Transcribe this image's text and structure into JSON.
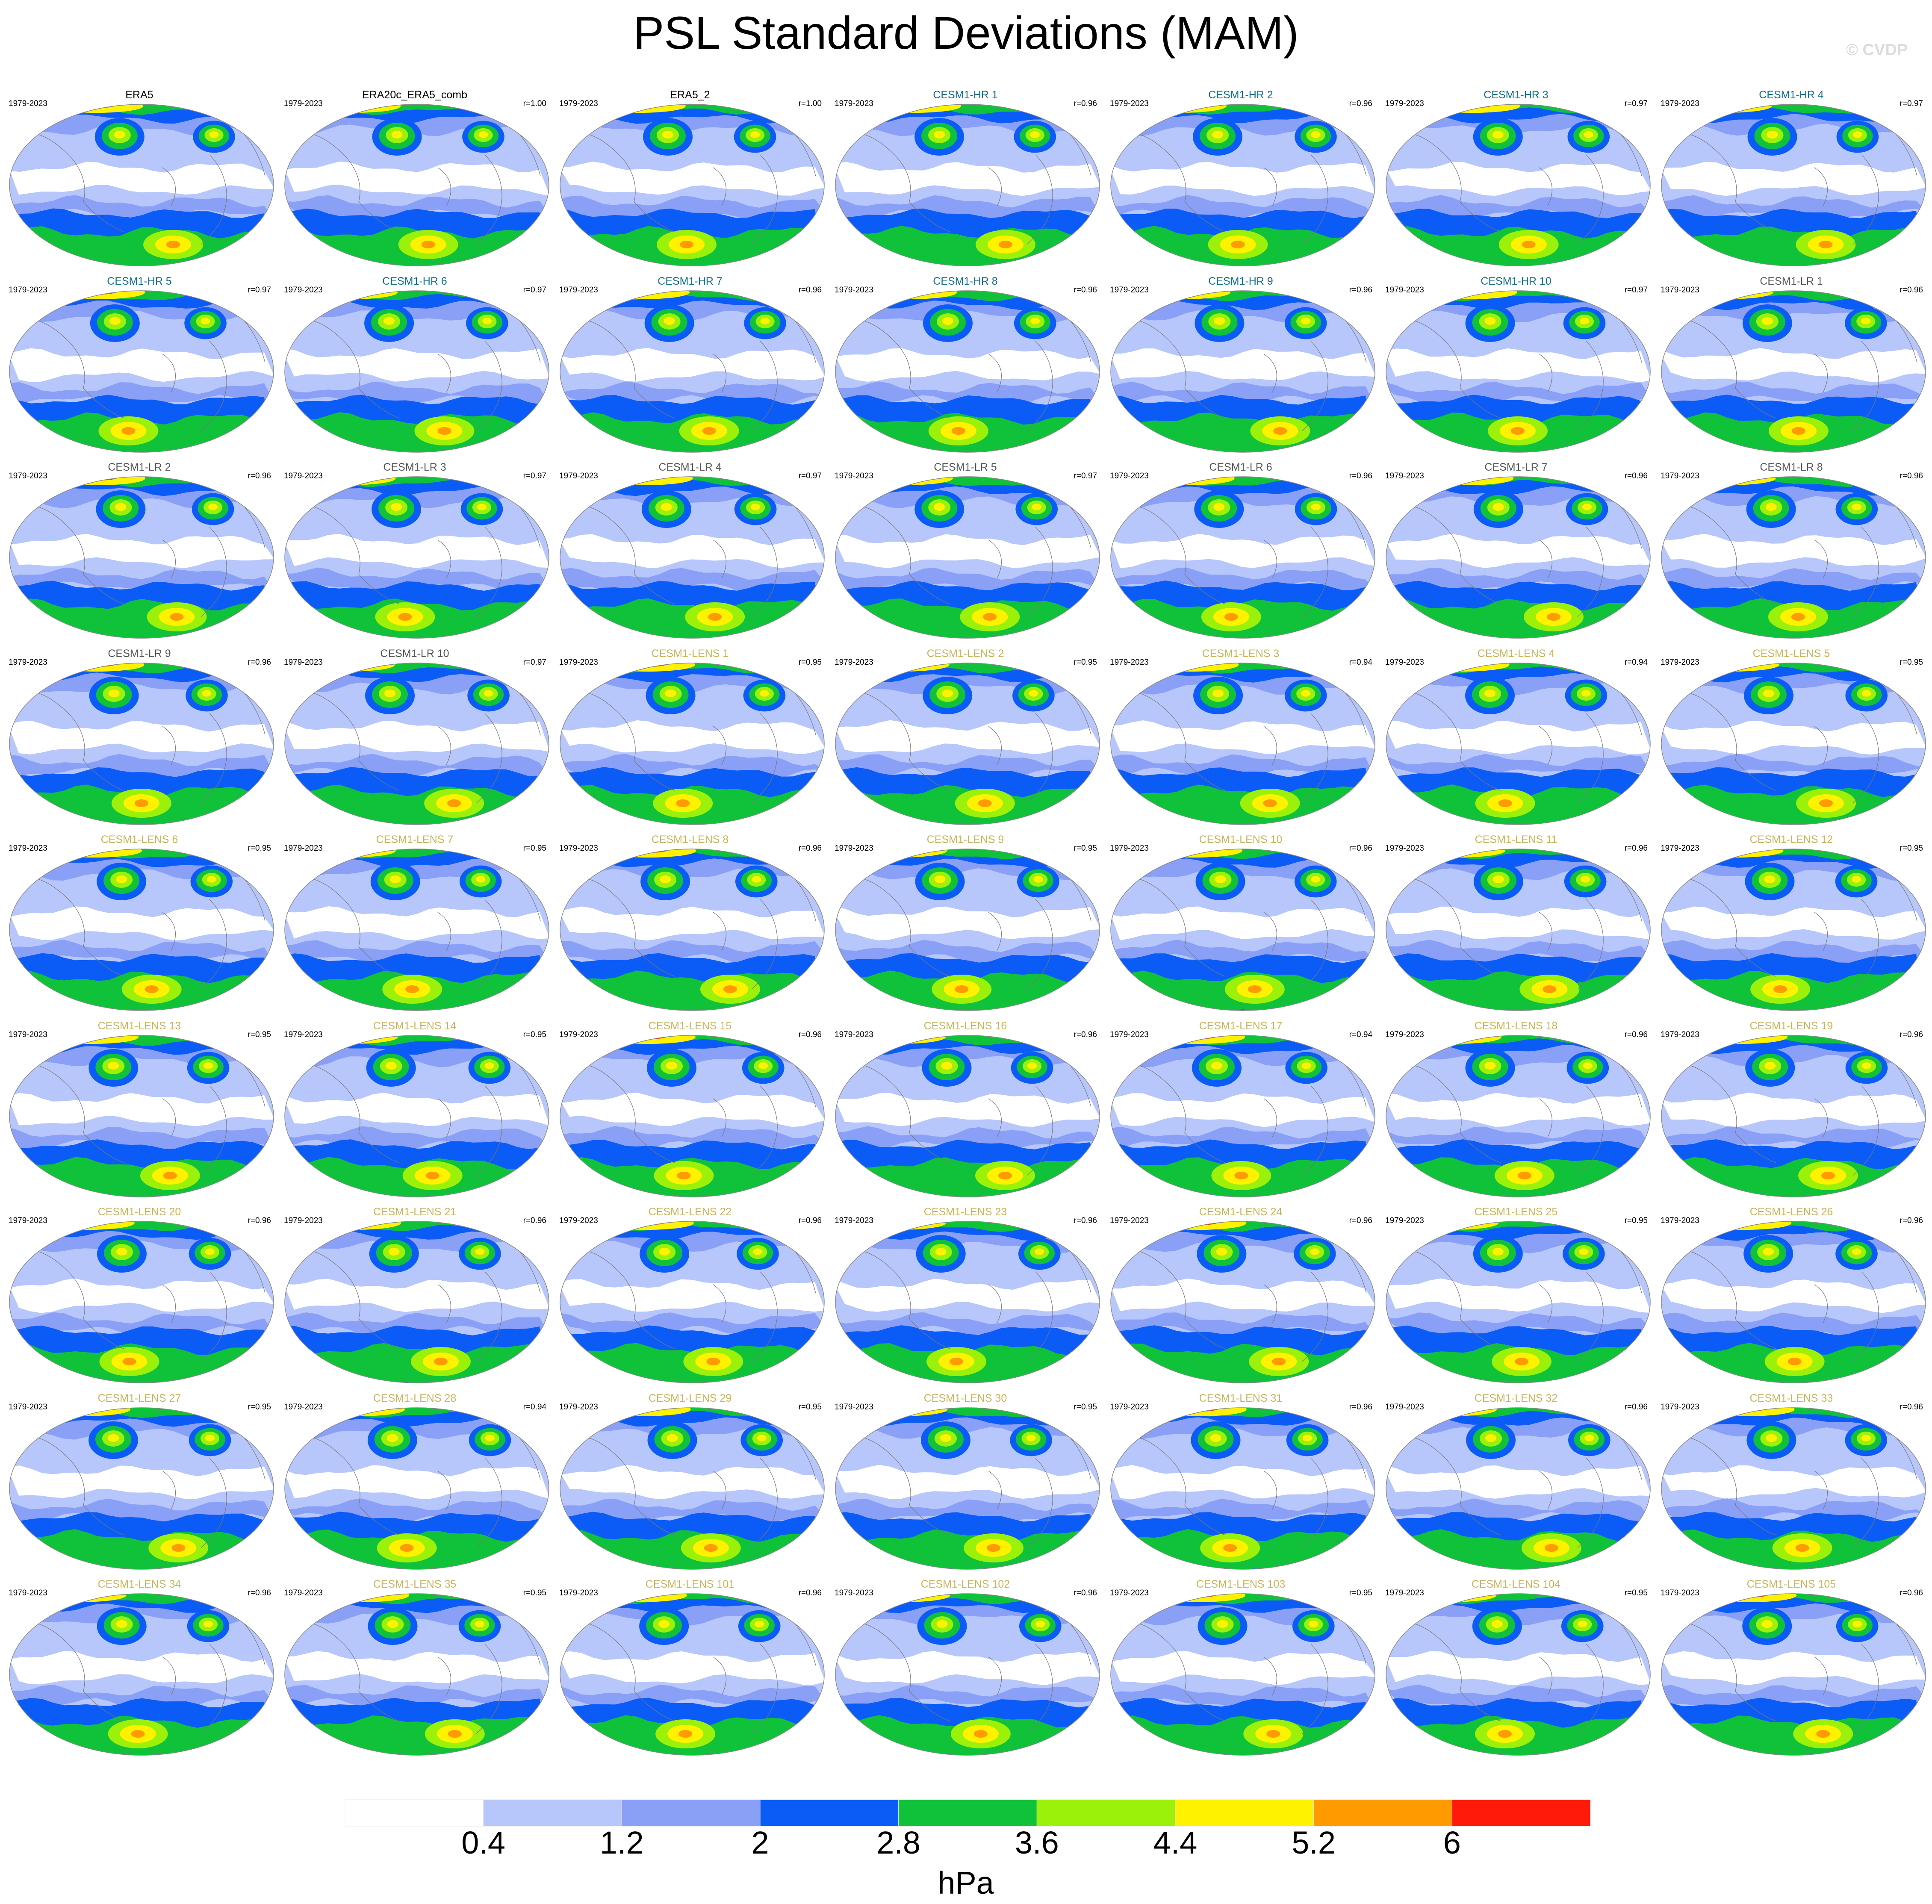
{
  "title": "PSL Standard Deviations (MAM)",
  "watermark": "© CVDP",
  "chart_data": {
    "type": "heatmap",
    "title": "PSL Standard Deviations (MAM)",
    "colorbar": {
      "units": "hPa",
      "tick_labels": [
        "0.4",
        "1.2",
        "2",
        "2.8",
        "3.6",
        "4.4",
        "5.2",
        "6"
      ],
      "colors": [
        "#ffffff",
        "#b7c6fb",
        "#8aa0f7",
        "#0b5cf7",
        "#10c23a",
        "#9cf10a",
        "#fff200",
        "#ff9a00",
        "#ff1a0a"
      ]
    },
    "panels": [
      {
        "name": "ERA5",
        "period": "1979-2023",
        "r": "",
        "group": "obs"
      },
      {
        "name": "ERA20c_ERA5_comb",
        "period": "1979-2023",
        "r": "r=1.00",
        "group": "obs"
      },
      {
        "name": "ERA5_2",
        "period": "1979-2023",
        "r": "r=1.00",
        "group": "obs"
      },
      {
        "name": "CESM1-HR 1",
        "period": "1979-2023",
        "r": "r=0.96",
        "group": "hr"
      },
      {
        "name": "CESM1-HR 2",
        "period": "1979-2023",
        "r": "r=0.96",
        "group": "hr"
      },
      {
        "name": "CESM1-HR 3",
        "period": "1979-2023",
        "r": "r=0.97",
        "group": "hr"
      },
      {
        "name": "CESM1-HR 4",
        "period": "1979-2023",
        "r": "r=0.97",
        "group": "hr"
      },
      {
        "name": "CESM1-HR 5",
        "period": "1979-2023",
        "r": "r=0.97",
        "group": "hr"
      },
      {
        "name": "CESM1-HR 6",
        "period": "1979-2023",
        "r": "r=0.97",
        "group": "hr"
      },
      {
        "name": "CESM1-HR 7",
        "period": "1979-2023",
        "r": "r=0.96",
        "group": "hr"
      },
      {
        "name": "CESM1-HR 8",
        "period": "1979-2023",
        "r": "r=0.96",
        "group": "hr"
      },
      {
        "name": "CESM1-HR 9",
        "period": "1979-2023",
        "r": "r=0.96",
        "group": "hr"
      },
      {
        "name": "CESM1-HR 10",
        "period": "1979-2023",
        "r": "r=0.97",
        "group": "hr"
      },
      {
        "name": "CESM1-LR 1",
        "period": "1979-2023",
        "r": "r=0.96",
        "group": "lr"
      },
      {
        "name": "CESM1-LR 2",
        "period": "1979-2023",
        "r": "r=0.96",
        "group": "lr"
      },
      {
        "name": "CESM1-LR 3",
        "period": "1979-2023",
        "r": "r=0.97",
        "group": "lr"
      },
      {
        "name": "CESM1-LR 4",
        "period": "1979-2023",
        "r": "r=0.97",
        "group": "lr"
      },
      {
        "name": "CESM1-LR 5",
        "period": "1979-2023",
        "r": "r=0.97",
        "group": "lr"
      },
      {
        "name": "CESM1-LR 6",
        "period": "1979-2023",
        "r": "r=0.96",
        "group": "lr"
      },
      {
        "name": "CESM1-LR 7",
        "period": "1979-2023",
        "r": "r=0.96",
        "group": "lr"
      },
      {
        "name": "CESM1-LR 8",
        "period": "1979-2023",
        "r": "r=0.96",
        "group": "lr"
      },
      {
        "name": "CESM1-LR 9",
        "period": "1979-2023",
        "r": "r=0.96",
        "group": "lr"
      },
      {
        "name": "CESM1-LR 10",
        "period": "1979-2023",
        "r": "r=0.97",
        "group": "lr"
      },
      {
        "name": "CESM1-LENS 1",
        "period": "1979-2023",
        "r": "r=0.95",
        "group": "lens"
      },
      {
        "name": "CESM1-LENS 2",
        "period": "1979-2023",
        "r": "r=0.95",
        "group": "lens"
      },
      {
        "name": "CESM1-LENS 3",
        "period": "1979-2023",
        "r": "r=0.94",
        "group": "lens"
      },
      {
        "name": "CESM1-LENS 4",
        "period": "1979-2023",
        "r": "r=0.94",
        "group": "lens"
      },
      {
        "name": "CESM1-LENS 5",
        "period": "1979-2023",
        "r": "r=0.95",
        "group": "lens"
      },
      {
        "name": "CESM1-LENS 6",
        "period": "1979-2023",
        "r": "r=0.95",
        "group": "lens"
      },
      {
        "name": "CESM1-LENS 7",
        "period": "1979-2023",
        "r": "r=0.95",
        "group": "lens"
      },
      {
        "name": "CESM1-LENS 8",
        "period": "1979-2023",
        "r": "r=0.96",
        "group": "lens"
      },
      {
        "name": "CESM1-LENS 9",
        "period": "1979-2023",
        "r": "r=0.95",
        "group": "lens"
      },
      {
        "name": "CESM1-LENS 10",
        "period": "1979-2023",
        "r": "r=0.96",
        "group": "lens"
      },
      {
        "name": "CESM1-LENS 11",
        "period": "1979-2023",
        "r": "r=0.96",
        "group": "lens"
      },
      {
        "name": "CESM1-LENS 12",
        "period": "1979-2023",
        "r": "r=0.95",
        "group": "lens"
      },
      {
        "name": "CESM1-LENS 13",
        "period": "1979-2023",
        "r": "r=0.95",
        "group": "lens"
      },
      {
        "name": "CESM1-LENS 14",
        "period": "1979-2023",
        "r": "r=0.95",
        "group": "lens"
      },
      {
        "name": "CESM1-LENS 15",
        "period": "1979-2023",
        "r": "r=0.96",
        "group": "lens"
      },
      {
        "name": "CESM1-LENS 16",
        "period": "1979-2023",
        "r": "r=0.96",
        "group": "lens"
      },
      {
        "name": "CESM1-LENS 17",
        "period": "1979-2023",
        "r": "r=0.94",
        "group": "lens"
      },
      {
        "name": "CESM1-LENS 18",
        "period": "1979-2023",
        "r": "r=0.96",
        "group": "lens"
      },
      {
        "name": "CESM1-LENS 19",
        "period": "1979-2023",
        "r": "r=0.96",
        "group": "lens"
      },
      {
        "name": "CESM1-LENS 20",
        "period": "1979-2023",
        "r": "r=0.96",
        "group": "lens"
      },
      {
        "name": "CESM1-LENS 21",
        "period": "1979-2023",
        "r": "r=0.96",
        "group": "lens"
      },
      {
        "name": "CESM1-LENS 22",
        "period": "1979-2023",
        "r": "r=0.96",
        "group": "lens"
      },
      {
        "name": "CESM1-LENS 23",
        "period": "1979-2023",
        "r": "r=0.96",
        "group": "lens"
      },
      {
        "name": "CESM1-LENS 24",
        "period": "1979-2023",
        "r": "r=0.96",
        "group": "lens"
      },
      {
        "name": "CESM1-LENS 25",
        "period": "1979-2023",
        "r": "r=0.95",
        "group": "lens"
      },
      {
        "name": "CESM1-LENS 26",
        "period": "1979-2023",
        "r": "r=0.96",
        "group": "lens"
      },
      {
        "name": "CESM1-LENS 27",
        "period": "1979-2023",
        "r": "r=0.95",
        "group": "lens"
      },
      {
        "name": "CESM1-LENS 28",
        "period": "1979-2023",
        "r": "r=0.94",
        "group": "lens"
      },
      {
        "name": "CESM1-LENS 29",
        "period": "1979-2023",
        "r": "r=0.95",
        "group": "lens"
      },
      {
        "name": "CESM1-LENS 30",
        "period": "1979-2023",
        "r": "r=0.95",
        "group": "lens"
      },
      {
        "name": "CESM1-LENS 31",
        "period": "1979-2023",
        "r": "r=0.96",
        "group": "lens"
      },
      {
        "name": "CESM1-LENS 32",
        "period": "1979-2023",
        "r": "r=0.96",
        "group": "lens"
      },
      {
        "name": "CESM1-LENS 33",
        "period": "1979-2023",
        "r": "r=0.96",
        "group": "lens"
      },
      {
        "name": "CESM1-LENS 34",
        "period": "1979-2023",
        "r": "r=0.96",
        "group": "lens"
      },
      {
        "name": "CESM1-LENS 35",
        "period": "1979-2023",
        "r": "r=0.95",
        "group": "lens"
      },
      {
        "name": "CESM1-LENS 101",
        "period": "1979-2023",
        "r": "r=0.96",
        "group": "lens"
      },
      {
        "name": "CESM1-LENS 102",
        "period": "1979-2023",
        "r": "r=0.96",
        "group": "lens"
      },
      {
        "name": "CESM1-LENS 103",
        "period": "1979-2023",
        "r": "r=0.95",
        "group": "lens"
      },
      {
        "name": "CESM1-LENS 104",
        "period": "1979-2023",
        "r": "r=0.95",
        "group": "lens"
      },
      {
        "name": "CESM1-LENS 105",
        "period": "1979-2023",
        "r": "r=0.96",
        "group": "lens"
      }
    ],
    "title_colors": {
      "obs": "#000000",
      "hr": "#0d6f8c",
      "lr": "#555555",
      "lens": "#c8b45a"
    }
  }
}
